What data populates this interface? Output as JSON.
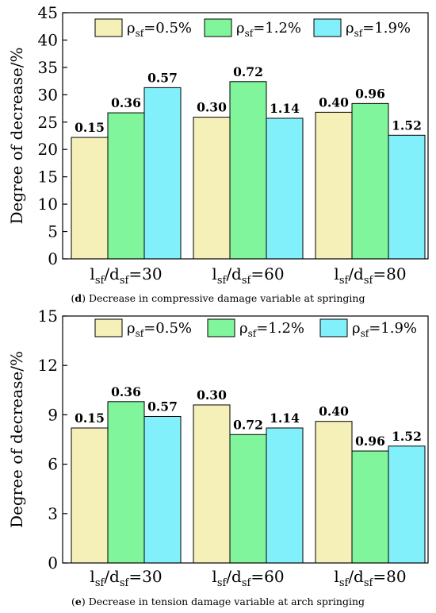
{
  "chart_data": [
    {
      "type": "bar",
      "panel": "d",
      "caption": "Decrease in compressive damage variable at springing",
      "ylabel": "Degree of decrease/%",
      "ylim": [
        0,
        45
      ],
      "yticks": [
        0,
        5,
        10,
        15,
        20,
        25,
        30,
        35,
        40,
        45
      ],
      "categories": [
        {
          "base": "l",
          "sub1": "sf",
          "mid": "/d",
          "sub2": "sf",
          "tail": "=30"
        },
        {
          "base": "l",
          "sub1": "sf",
          "mid": "/d",
          "sub2": "sf",
          "tail": "=60"
        },
        {
          "base": "l",
          "sub1": "sf",
          "mid": "/d",
          "sub2": "sf",
          "tail": "=80"
        }
      ],
      "series": [
        {
          "legend_base": "ρ",
          "legend_sub": "sf",
          "legend_tail": "=0.5%",
          "color": "#f5f0b8",
          "values": [
            22.2,
            25.9,
            26.8
          ],
          "labels": [
            "0.15",
            "0.30",
            "0.40"
          ]
        },
        {
          "legend_base": "ρ",
          "legend_sub": "sf",
          "legend_tail": "=1.2%",
          "color": "#80f59b",
          "values": [
            26.7,
            32.4,
            28.4
          ],
          "labels": [
            "0.36",
            "0.72",
            "0.96"
          ]
        },
        {
          "legend_base": "ρ",
          "legend_sub": "sf",
          "legend_tail": "=1.9%",
          "color": "#82f0fa",
          "values": [
            31.3,
            25.7,
            22.6
          ],
          "labels": [
            "0.57",
            "1.14",
            "1.52"
          ]
        }
      ],
      "legend_position": "top"
    },
    {
      "type": "bar",
      "panel": "e",
      "caption": "Decrease in tension damage variable at arch springing",
      "ylabel": "Degree of decrease/%",
      "ylim": [
        0,
        15
      ],
      "yticks": [
        0,
        3,
        6,
        9,
        12,
        15
      ],
      "categories": [
        {
          "base": "l",
          "sub1": "sf",
          "mid": "/d",
          "sub2": "sf",
          "tail": "=30"
        },
        {
          "base": "l",
          "sub1": "sf",
          "mid": "/d",
          "sub2": "sf",
          "tail": "=60"
        },
        {
          "base": "l",
          "sub1": "sf",
          "mid": "/d",
          "sub2": "sf",
          "tail": "=80"
        }
      ],
      "series": [
        {
          "legend_base": "ρ",
          "legend_sub": "sf",
          "legend_tail": "=0.5%",
          "color": "#f5f0b8",
          "values": [
            8.2,
            9.6,
            8.6
          ],
          "labels": [
            "0.15",
            "0.30",
            "0.40"
          ]
        },
        {
          "legend_base": "ρ",
          "legend_sub": "sf",
          "legend_tail": "=1.2%",
          "color": "#80f59b",
          "values": [
            9.8,
            7.8,
            6.8
          ],
          "labels": [
            "0.36",
            "0.72",
            "0.96"
          ]
        },
        {
          "legend_base": "ρ",
          "legend_sub": "sf",
          "legend_tail": "=1.9%",
          "color": "#82f0fa",
          "values": [
            8.9,
            8.2,
            7.1
          ],
          "labels": [
            "0.57",
            "1.14",
            "1.52"
          ]
        }
      ],
      "legend_position": "top"
    }
  ]
}
